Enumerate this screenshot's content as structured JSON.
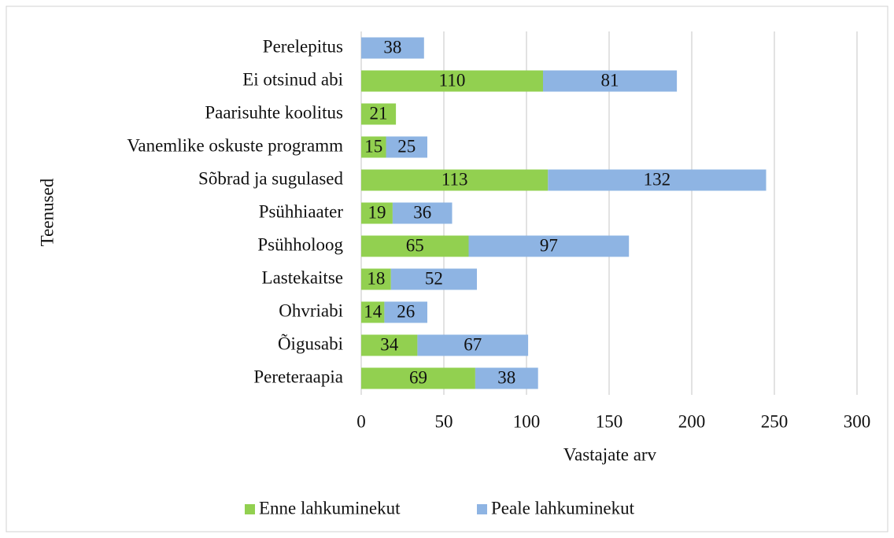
{
  "chart_data": {
    "type": "stacked-bar-horizontal",
    "categories": [
      "Perelepitus",
      "Ei otsinud abi",
      "Paarisuhte koolitus",
      "Vanemlike oskuste programm",
      "Sõbrad ja sugulased",
      "Psühhiaater",
      "Psühholoog",
      "Lastekaitse",
      "Ohvriabi",
      "Õigusabi",
      "Pereteraapia"
    ],
    "series": [
      {
        "name": "Enne lahkuminekut",
        "color": "#92d050",
        "values": [
          null,
          110,
          21,
          15,
          113,
          19,
          65,
          18,
          14,
          34,
          69
        ]
      },
      {
        "name": "Peale lahkuminekut",
        "color": "#8eb4e3",
        "values": [
          38,
          81,
          null,
          25,
          132,
          36,
          97,
          52,
          26,
          67,
          38
        ]
      }
    ],
    "xlabel": "Vastajate arv",
    "ylabel": "Teenused",
    "xlim": [
      0,
      300
    ],
    "xticks": [
      0,
      50,
      100,
      150,
      200,
      250,
      300
    ],
    "grid": true,
    "legend": "bottom"
  }
}
